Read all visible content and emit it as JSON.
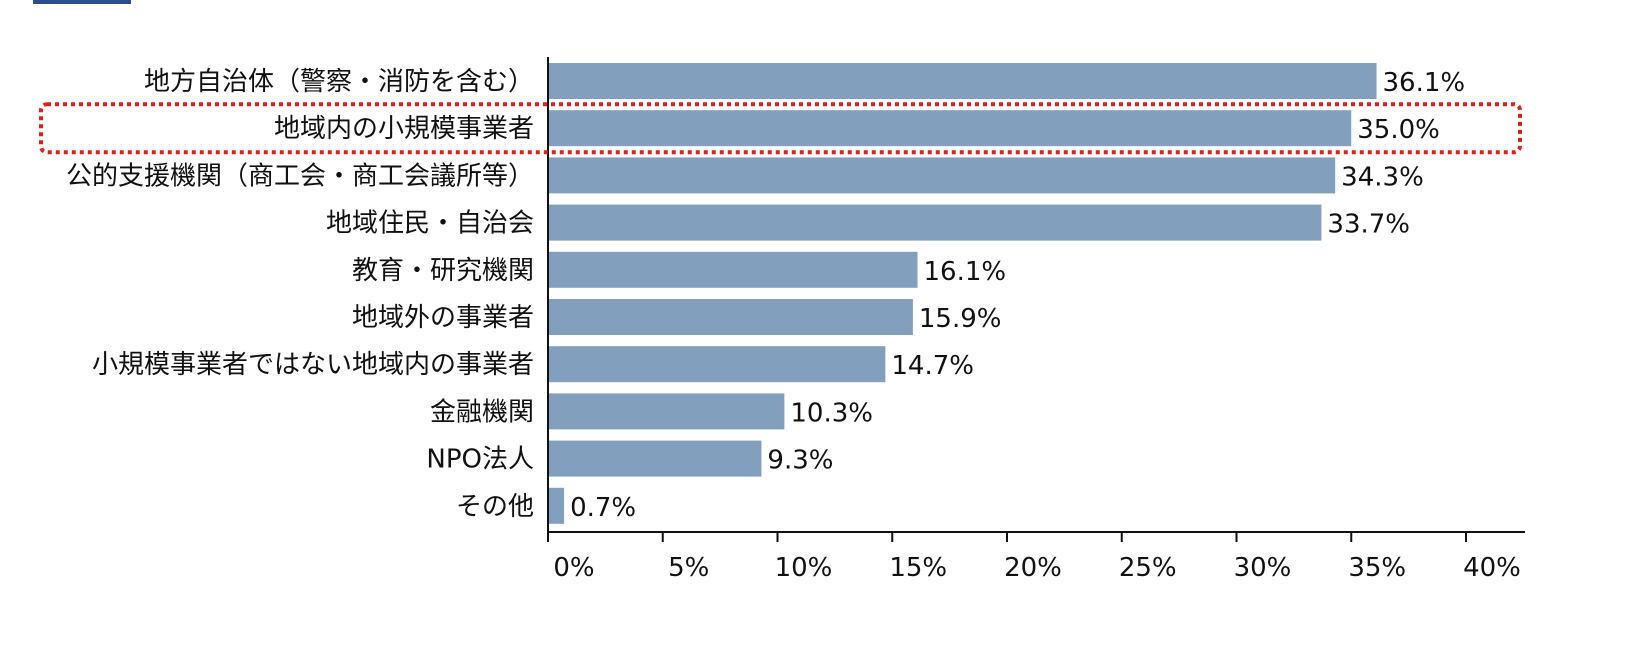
{
  "chart_data": {
    "type": "bar",
    "orientation": "horizontal",
    "categories": [
      "地方自治体（警察・消防を含む）",
      "地域内の小規模事業者",
      "公的支援機関（商工会・商工会議所等）",
      "地域住民・自治会",
      "教育・研究機関",
      "地域外の事業者",
      "小規模事業者ではない地域内の事業者",
      "金融機関",
      "NPO法人",
      "その他"
    ],
    "values": [
      36.1,
      35.0,
      34.3,
      33.7,
      16.1,
      15.9,
      14.7,
      10.3,
      9.3,
      0.7
    ],
    "value_labels": [
      "36.1%",
      "35.0%",
      "34.3%",
      "33.7%",
      "16.1%",
      "15.9%",
      "14.7%",
      "10.3%",
      "9.3%",
      "0.7%"
    ],
    "xlim": [
      0,
      40
    ],
    "x_ticks": [
      0,
      5,
      10,
      15,
      20,
      25,
      30,
      35,
      40
    ],
    "x_tick_labels": [
      "0%",
      "5%",
      "10%",
      "15%",
      "20%",
      "25%",
      "30%",
      "35%",
      "40%"
    ],
    "highlighted_category": "地域内の小規模事業者",
    "title": "",
    "xlabel": "",
    "ylabel": "",
    "grid": false,
    "bar_color": "#829fbd",
    "highlight_color": "#e0201b",
    "axis_color": "#111111",
    "tab_color": "#2e4d8f"
  }
}
